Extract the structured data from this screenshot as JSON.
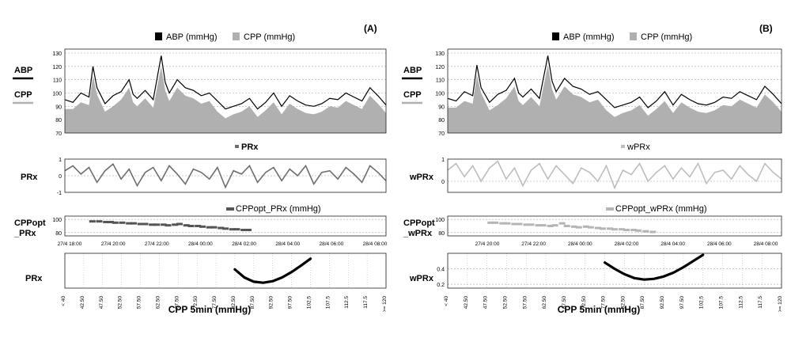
{
  "figure": {
    "colors": {
      "abp": "#000000",
      "cpp": "#b0b0b0",
      "prx": "#6e6e6e",
      "wprx": "#bdbdbd",
      "curve": "#000000",
      "grid": "#9a9a9a"
    }
  },
  "panels": [
    {
      "id": "A",
      "label": "(A)",
      "abp_cpp": {
        "legend": [
          "ABP (mmHg)",
          "CPP (mmHg)"
        ],
        "side_labels": [
          "ABP",
          "CPP"
        ],
        "yticks": [
          "130",
          "120",
          "110",
          "100",
          "90",
          "80",
          "70"
        ]
      },
      "index": {
        "legend": "PRx",
        "side_label": "PRx",
        "yticks": [
          "1",
          "0",
          "-1"
        ]
      },
      "cppopt": {
        "legend": "CPPopt_PRx (mmHg)",
        "side_label": "CPPopt\n_PRx",
        "yticks": [
          "100",
          "80"
        ],
        "time_ticks": [
          "27/4 18:00",
          "27/4 20:00",
          "27/4 22:00",
          "28/4 00:00",
          "28/4 02:00",
          "28/4 04:00",
          "28/4 06:00",
          "28/4 08:00"
        ]
      },
      "curve": {
        "side_label": "PRx",
        "x_title": "CPP 5min (mmHg)",
        "xticks": [
          "< 40",
          "42.50",
          "47.50",
          "52.50",
          "57.50",
          "62.50",
          "67.50",
          "72.50",
          "77.50",
          "82.50",
          "87.50",
          "92.50",
          "97.50",
          "102.5",
          "107.5",
          "112.5",
          "117.5",
          ">= 120"
        ],
        "yticks": []
      }
    },
    {
      "id": "B",
      "label": "(B)",
      "abp_cpp": {
        "legend": [
          "ABP (mmHg)",
          "CPP (mmHg)"
        ],
        "side_labels": [
          "ABP",
          "CPP"
        ],
        "yticks": [
          "130",
          "120",
          "110",
          "100",
          "90",
          "80",
          "70"
        ]
      },
      "index": {
        "legend": "wPRx",
        "side_label": "wPRx",
        "yticks": [
          "1",
          "0"
        ]
      },
      "cppopt": {
        "legend": "CPPopt_wPRx (mmHg)",
        "side_label": "CPPopt\n_wPRx",
        "yticks": [
          "100",
          "80"
        ],
        "time_ticks": [
          "27/4 20:00",
          "27/4 22:00",
          "28/4 00:00",
          "28/4 02:00",
          "28/4 04:00",
          "28/4 06:00",
          "28/4 08:00"
        ]
      },
      "curve": {
        "side_label": "wPRx",
        "x_title": "CPP 5min (mmHg)",
        "xticks": [
          "< 40",
          "42.50",
          "47.50",
          "52.50",
          "57.50",
          "62.50",
          "67.50",
          "72.50",
          "77.50",
          "82.50",
          "87.50",
          "92.50",
          "97.50",
          "102.5",
          "107.5",
          "112.5",
          "117.5",
          ">= 120"
        ],
        "yticks": [
          "0.4",
          "0.2"
        ]
      }
    }
  ],
  "chart_data": [
    {
      "type": "area",
      "panel": "A",
      "series": [
        {
          "name": "ABP (mmHg)",
          "values": [
            95,
            93,
            100,
            97,
            120,
            104,
            92,
            98,
            101,
            110,
            99,
            96,
            102,
            95,
            128,
            108,
            100,
            110,
            104,
            102,
            98,
            100,
            94,
            88,
            90,
            92,
            96,
            88,
            93,
            100,
            90,
            98,
            94,
            91,
            90,
            92,
            96,
            95,
            100,
            97,
            94,
            104,
            98,
            91
          ],
          "x": [
            0,
            2,
            4,
            6,
            7,
            8,
            10,
            12,
            14,
            16,
            17,
            18,
            20,
            22,
            24,
            25,
            26,
            28,
            30,
            32,
            34,
            36,
            38,
            40,
            42,
            44,
            46,
            48,
            50,
            52,
            54,
            56,
            58,
            60,
            62,
            64,
            66,
            68,
            70,
            72,
            74,
            76,
            78,
            80
          ]
        },
        {
          "name": "CPP (mmHg)",
          "values": [
            88,
            88,
            93,
            91,
            113,
            99,
            86,
            90,
            95,
            104,
            93,
            90,
            96,
            89,
            120,
            102,
            94,
            104,
            98,
            96,
            92,
            94,
            86,
            81,
            84,
            86,
            90,
            82,
            87,
            93,
            84,
            92,
            88,
            85,
            84,
            86,
            90,
            89,
            94,
            91,
            88,
            98,
            92,
            85
          ],
          "x": [
            0,
            2,
            4,
            6,
            7,
            8,
            10,
            12,
            14,
            16,
            17,
            18,
            20,
            22,
            24,
            25,
            26,
            28,
            30,
            32,
            34,
            36,
            38,
            40,
            42,
            44,
            46,
            48,
            50,
            52,
            54,
            56,
            58,
            60,
            62,
            64,
            66,
            68,
            70,
            72,
            74,
            76,
            78,
            80
          ]
        }
      ],
      "ylim": [
        70,
        133
      ],
      "xlim": [
        0,
        80
      ]
    },
    {
      "type": "line",
      "panel": "A",
      "series": [
        {
          "name": "PRx",
          "x": [
            0,
            2,
            4,
            6,
            8,
            10,
            12,
            14,
            16,
            18,
            20,
            22,
            24,
            26,
            28,
            30,
            32,
            34,
            36,
            38,
            40,
            42,
            44,
            46,
            48,
            50,
            52,
            54,
            56,
            58,
            60,
            62,
            64,
            66,
            68,
            70,
            72,
            74,
            76,
            78,
            80
          ],
          "values": [
            0.3,
            0.6,
            0.1,
            0.5,
            -0.4,
            0.3,
            0.7,
            -0.2,
            0.4,
            -0.6,
            0.2,
            0.5,
            -0.3,
            0.6,
            0.1,
            -0.5,
            0.4,
            0.2,
            -0.2,
            0.5,
            -0.7,
            0.3,
            0.1,
            0.6,
            -0.4,
            0.2,
            0.5,
            -0.3,
            0.4,
            0.0,
            0.6,
            -0.5,
            0.2,
            0.3,
            -0.2,
            0.5,
            0.1,
            -0.4,
            0.6,
            0.2,
            -0.3
          ]
        }
      ],
      "ylim": [
        -1,
        1
      ]
    },
    {
      "type": "scatter",
      "panel": "A",
      "series": [
        {
          "name": "CPPopt_PRx (mmHg)",
          "x": [
            27.2,
            27.5,
            27.8,
            28.0,
            28.2,
            28.5,
            28.8,
            29.0,
            29.3,
            29.5,
            29.8,
            30.0,
            30.3,
            30.5,
            30.8,
            31.0,
            31.3,
            31.5,
            31.8,
            32.0,
            32.3,
            32.5,
            32.8,
            33.0,
            33.3,
            33.5,
            33.8,
            34.0
          ],
          "values": [
            97,
            97,
            96,
            96,
            95,
            95,
            94,
            94,
            93,
            93,
            92,
            92,
            92,
            91,
            92,
            93,
            91,
            90,
            90,
            89,
            88,
            88,
            87,
            86,
            85,
            85,
            84,
            84
          ]
        }
      ],
      "ylim": [
        75,
        105
      ],
      "xlim": [
        26.0,
        40.0
      ]
    },
    {
      "type": "line",
      "panel": "A",
      "series": [
        {
          "name": "PRx vs CPP 5min",
          "x": [
            82.5,
            85,
            87.5,
            90,
            92.5,
            95,
            97.5,
            100,
            102.5
          ],
          "values": [
            0.55,
            0.4,
            0.32,
            0.3,
            0.33,
            0.4,
            0.5,
            0.62,
            0.75
          ]
        }
      ],
      "xlabel": "CPP 5min (mmHg)",
      "ylabel": "PRx"
    },
    {
      "type": "area",
      "panel": "B",
      "series": [
        {
          "name": "ABP (mmHg)",
          "x": [
            0,
            2,
            4,
            6,
            7,
            8,
            10,
            12,
            14,
            16,
            17,
            18,
            20,
            22,
            24,
            25,
            26,
            28,
            30,
            32,
            34,
            36,
            38,
            40,
            42,
            44,
            46,
            48,
            50,
            52,
            54,
            56,
            58,
            60,
            62,
            64,
            66,
            68,
            70,
            72,
            74,
            76,
            78,
            80
          ],
          "values": [
            96,
            94,
            101,
            98,
            121,
            104,
            93,
            99,
            102,
            111,
            100,
            97,
            103,
            96,
            128,
            109,
            101,
            111,
            105,
            103,
            99,
            101,
            95,
            89,
            91,
            93,
            97,
            89,
            94,
            101,
            91,
            99,
            95,
            92,
            91,
            93,
            97,
            96,
            101,
            98,
            95,
            105,
            99,
            92
          ]
        },
        {
          "name": "CPP (mmHg)",
          "x": [
            0,
            2,
            4,
            6,
            7,
            8,
            10,
            12,
            14,
            16,
            17,
            18,
            20,
            22,
            24,
            25,
            26,
            28,
            30,
            32,
            34,
            36,
            38,
            40,
            42,
            44,
            46,
            48,
            50,
            52,
            54,
            56,
            58,
            60,
            62,
            64,
            66,
            68,
            70,
            72,
            74,
            76,
            78,
            80
          ],
          "values": [
            89,
            89,
            94,
            92,
            114,
            100,
            87,
            91,
            96,
            105,
            94,
            91,
            97,
            90,
            121,
            103,
            95,
            105,
            99,
            97,
            93,
            95,
            87,
            82,
            85,
            87,
            91,
            83,
            88,
            94,
            85,
            93,
            89,
            86,
            85,
            87,
            91,
            90,
            95,
            92,
            89,
            99,
            93,
            86
          ]
        }
      ],
      "ylim": [
        70,
        133
      ],
      "xlim": [
        0,
        80
      ]
    },
    {
      "type": "line",
      "panel": "B",
      "series": [
        {
          "name": "wPRx",
          "x": [
            0,
            2,
            4,
            6,
            8,
            10,
            12,
            14,
            16,
            18,
            20,
            22,
            24,
            26,
            28,
            30,
            32,
            34,
            36,
            38,
            40,
            42,
            44,
            46,
            48,
            50,
            52,
            54,
            56,
            58,
            60,
            62,
            64,
            66,
            68,
            70,
            72,
            74,
            76,
            78,
            80
          ],
          "values": [
            0.5,
            0.8,
            0.2,
            0.7,
            0.0,
            0.6,
            0.9,
            0.1,
            0.6,
            -0.2,
            0.5,
            0.8,
            0.1,
            0.7,
            0.3,
            -0.1,
            0.6,
            0.4,
            0.0,
            0.7,
            -0.3,
            0.5,
            0.3,
            0.8,
            0.0,
            0.4,
            0.7,
            0.1,
            0.6,
            0.2,
            0.8,
            -0.1,
            0.4,
            0.5,
            0.1,
            0.7,
            0.3,
            0.0,
            0.8,
            0.4,
            0.1
          ]
        }
      ],
      "ylim": [
        -0.5,
        1
      ]
    },
    {
      "type": "scatter",
      "panel": "B",
      "series": [
        {
          "name": "CPPopt_wPRx (mmHg)",
          "x": [
            27.8,
            28.0,
            28.3,
            28.5,
            28.8,
            29.0,
            29.3,
            29.5,
            29.8,
            30.0,
            30.3,
            30.5,
            30.8,
            31.0,
            31.3,
            31.5,
            31.8,
            32.0,
            32.3,
            32.5,
            32.8,
            33.0,
            33.3,
            33.5,
            33.8,
            34.0,
            34.3,
            34.6
          ],
          "values": [
            95,
            95,
            94,
            94,
            93,
            93,
            92,
            92,
            91,
            91,
            90,
            91,
            94,
            90,
            89,
            88,
            89,
            88,
            87,
            86,
            86,
            85,
            85,
            84,
            84,
            83,
            82,
            81
          ]
        }
      ],
      "ylim": [
        75,
        105
      ],
      "xlim": [
        26.0,
        40.0
      ]
    },
    {
      "type": "line",
      "panel": "B",
      "series": [
        {
          "name": "wPRx vs CPP 5min",
          "x": [
            77.5,
            80,
            82.5,
            85,
            87.5,
            90,
            92.5,
            95,
            97.5,
            100,
            102.5
          ],
          "values": [
            0.48,
            0.4,
            0.33,
            0.28,
            0.26,
            0.27,
            0.3,
            0.35,
            0.42,
            0.5,
            0.58
          ]
        }
      ],
      "xlabel": "CPP 5min (mmHg)",
      "ylabel": "wPRx",
      "ylim": [
        0.15,
        0.6
      ]
    }
  ]
}
